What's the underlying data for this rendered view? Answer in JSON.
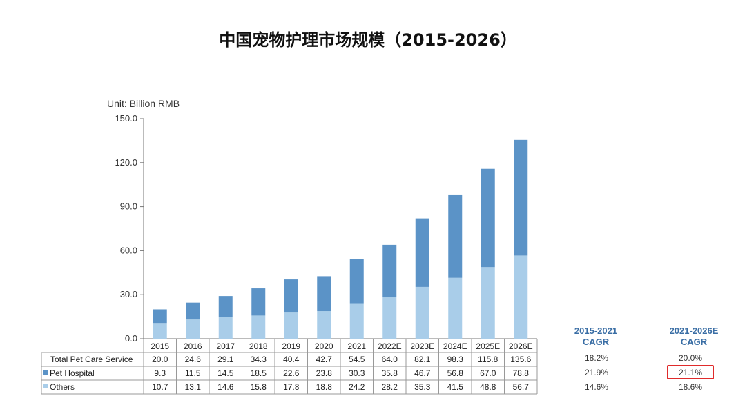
{
  "title": "中国宠物护理市场规模（2015-2026）",
  "unit_label": "Unit: Billion RMB",
  "colors": {
    "pet_hospital": "#5b93c7",
    "others": "#a9cde9",
    "cagr_head": "#3a6ea5",
    "highlight": "#e02b2b"
  },
  "chart_data": {
    "type": "bar",
    "stacked": true,
    "categories": [
      "2015",
      "2016",
      "2017",
      "2018",
      "2019",
      "2020",
      "2021",
      "2022E",
      "2023E",
      "2024E",
      "2025E",
      "2026E"
    ],
    "yticks": [
      "0.0",
      "30.0",
      "60.0",
      "90.0",
      "120.0",
      "150.0"
    ],
    "ylim": [
      0,
      150
    ],
    "series": [
      {
        "name": "Others",
        "values": [
          10.7,
          13.1,
          14.6,
          15.8,
          17.8,
          18.8,
          24.2,
          28.2,
          35.3,
          41.5,
          48.8,
          56.7
        ]
      },
      {
        "name": "Pet Hospital",
        "values": [
          9.3,
          11.5,
          14.5,
          18.5,
          22.6,
          23.8,
          30.3,
          35.8,
          46.7,
          56.8,
          67.0,
          78.8
        ]
      }
    ],
    "totals": [
      20.0,
      24.6,
      29.1,
      34.3,
      40.4,
      42.7,
      54.5,
      64.0,
      82.1,
      98.3,
      115.8,
      135.6
    ]
  },
  "table": {
    "rows": [
      {
        "label": "Total Pet Care Service",
        "marker": "",
        "values": [
          "20.0",
          "24.6",
          "29.1",
          "34.3",
          "40.4",
          "42.7",
          "54.5",
          "64.0",
          "82.1",
          "98.3",
          "115.8",
          "135.6"
        ]
      },
      {
        "label": "Pet Hospital",
        "marker": "■",
        "values": [
          "9.3",
          "11.5",
          "14.5",
          "18.5",
          "22.6",
          "23.8",
          "30.3",
          "35.8",
          "46.7",
          "56.8",
          "67.0",
          "78.8"
        ]
      },
      {
        "label": "Others",
        "marker": "■",
        "values": [
          "10.7",
          "13.1",
          "14.6",
          "15.8",
          "17.8",
          "18.8",
          "24.2",
          "28.2",
          "35.3",
          "41.5",
          "48.8",
          "56.7"
        ]
      }
    ]
  },
  "cagr": {
    "col1": {
      "head_line1": "2015-2021",
      "head_line2": "CAGR",
      "values": [
        "18.2%",
        "21.9%",
        "14.6%"
      ]
    },
    "col2": {
      "head_line1": "2021-2026E",
      "head_line2": "CAGR",
      "values": [
        "20.0%",
        "21.1%",
        "18.6%"
      ]
    }
  }
}
